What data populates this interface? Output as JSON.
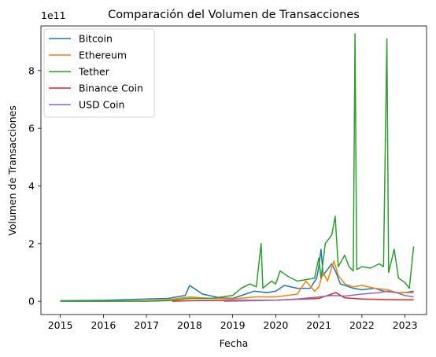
{
  "chart_data": {
    "type": "line",
    "title": "Comparación del Volumen de Transacciones",
    "xlabel": "Fecha",
    "ylabel": "Volumen de Transacciones",
    "y_offset_label": "1e11",
    "x_ticks": [
      "2015",
      "2016",
      "2017",
      "2018",
      "2019",
      "2020",
      "2021",
      "2022",
      "2023"
    ],
    "y_ticks": [
      "0",
      "2",
      "4",
      "6",
      "8"
    ],
    "xlim": [
      2014.55,
      2023.5
    ],
    "ylim": [
      -0.46,
      9.55
    ],
    "y_unit_multiplier": 100000000000.0,
    "grid": false,
    "legend_position": "upper-left",
    "series": [
      {
        "name": "Bitcoin",
        "color": "#1f77b4",
        "points": [
          [
            2015.0,
            0.02
          ],
          [
            2016.0,
            0.03
          ],
          [
            2016.6,
            0.06
          ],
          [
            2017.0,
            0.08
          ],
          [
            2017.5,
            0.1
          ],
          [
            2017.9,
            0.2
          ],
          [
            2018.0,
            0.55
          ],
          [
            2018.3,
            0.25
          ],
          [
            2018.7,
            0.12
          ],
          [
            2019.0,
            0.1
          ],
          [
            2019.3,
            0.25
          ],
          [
            2019.5,
            0.35
          ],
          [
            2019.8,
            0.3
          ],
          [
            2020.0,
            0.35
          ],
          [
            2020.2,
            0.55
          ],
          [
            2020.5,
            0.45
          ],
          [
            2020.8,
            0.45
          ],
          [
            2020.95,
            0.8
          ],
          [
            2021.0,
            1.2
          ],
          [
            2021.05,
            1.8
          ],
          [
            2021.1,
            0.9
          ],
          [
            2021.3,
            1.3
          ],
          [
            2021.4,
            1.0
          ],
          [
            2021.5,
            0.6
          ],
          [
            2021.8,
            0.45
          ],
          [
            2022.0,
            0.4
          ],
          [
            2022.3,
            0.45
          ],
          [
            2022.5,
            0.35
          ],
          [
            2022.8,
            0.3
          ],
          [
            2023.0,
            0.3
          ],
          [
            2023.2,
            0.35
          ]
        ]
      },
      {
        "name": "Ethereum",
        "color": "#ff7f0e",
        "points": [
          [
            2015.0,
            0.0
          ],
          [
            2016.0,
            0.0
          ],
          [
            2017.0,
            0.02
          ],
          [
            2017.5,
            0.05
          ],
          [
            2018.0,
            0.15
          ],
          [
            2018.5,
            0.1
          ],
          [
            2019.0,
            0.08
          ],
          [
            2019.5,
            0.15
          ],
          [
            2020.0,
            0.15
          ],
          [
            2020.5,
            0.25
          ],
          [
            2020.7,
            0.7
          ],
          [
            2020.9,
            0.35
          ],
          [
            2021.0,
            0.5
          ],
          [
            2021.1,
            1.0
          ],
          [
            2021.2,
            0.7
          ],
          [
            2021.35,
            1.4
          ],
          [
            2021.45,
            0.9
          ],
          [
            2021.6,
            0.6
          ],
          [
            2021.8,
            0.5
          ],
          [
            2022.0,
            0.55
          ],
          [
            2022.3,
            0.45
          ],
          [
            2022.6,
            0.4
          ],
          [
            2022.8,
            0.3
          ],
          [
            2023.0,
            0.3
          ],
          [
            2023.2,
            0.3
          ]
        ]
      },
      {
        "name": "Tether",
        "color": "#2ca02c",
        "points": [
          [
            2015.0,
            0.0
          ],
          [
            2016.0,
            0.0
          ],
          [
            2017.0,
            0.0
          ],
          [
            2017.5,
            0.02
          ],
          [
            2018.0,
            0.1
          ],
          [
            2018.5,
            0.1
          ],
          [
            2019.0,
            0.2
          ],
          [
            2019.2,
            0.45
          ],
          [
            2019.4,
            0.6
          ],
          [
            2019.55,
            0.5
          ],
          [
            2019.66,
            2.0
          ],
          [
            2019.7,
            0.45
          ],
          [
            2019.9,
            0.7
          ],
          [
            2020.0,
            0.6
          ],
          [
            2020.1,
            1.05
          ],
          [
            2020.3,
            0.85
          ],
          [
            2020.5,
            0.7
          ],
          [
            2020.7,
            0.75
          ],
          [
            2020.9,
            0.8
          ],
          [
            2021.0,
            1.5
          ],
          [
            2021.05,
            0.8
          ],
          [
            2021.15,
            2.0
          ],
          [
            2021.3,
            2.3
          ],
          [
            2021.38,
            2.95
          ],
          [
            2021.45,
            1.2
          ],
          [
            2021.6,
            1.6
          ],
          [
            2021.7,
            1.2
          ],
          [
            2021.8,
            1.05
          ],
          [
            2021.84,
            9.28
          ],
          [
            2021.88,
            1.1
          ],
          [
            2022.0,
            1.2
          ],
          [
            2022.2,
            1.15
          ],
          [
            2022.4,
            1.3
          ],
          [
            2022.5,
            1.2
          ],
          [
            2022.58,
            9.1
          ],
          [
            2022.62,
            1.0
          ],
          [
            2022.75,
            1.8
          ],
          [
            2022.85,
            0.8
          ],
          [
            2023.0,
            0.65
          ],
          [
            2023.1,
            0.45
          ],
          [
            2023.2,
            1.9
          ]
        ]
      },
      {
        "name": "Binance Coin",
        "color": "#d62728",
        "points": [
          [
            2017.6,
            0.0
          ],
          [
            2018.0,
            0.02
          ],
          [
            2019.0,
            0.03
          ],
          [
            2020.0,
            0.04
          ],
          [
            2021.0,
            0.1
          ],
          [
            2021.2,
            0.2
          ],
          [
            2021.4,
            0.3
          ],
          [
            2021.6,
            0.12
          ],
          [
            2022.0,
            0.08
          ],
          [
            2022.5,
            0.06
          ],
          [
            2023.0,
            0.05
          ],
          [
            2023.2,
            0.05
          ]
        ]
      },
      {
        "name": "USD Coin",
        "color": "#9467bd",
        "points": [
          [
            2018.8,
            0.0
          ],
          [
            2019.5,
            0.02
          ],
          [
            2020.0,
            0.04
          ],
          [
            2020.5,
            0.08
          ],
          [
            2021.0,
            0.15
          ],
          [
            2021.3,
            0.2
          ],
          [
            2021.6,
            0.18
          ],
          [
            2022.0,
            0.25
          ],
          [
            2022.4,
            0.3
          ],
          [
            2022.6,
            0.35
          ],
          [
            2022.8,
            0.3
          ],
          [
            2023.0,
            0.2
          ],
          [
            2023.2,
            0.15
          ]
        ]
      }
    ]
  }
}
